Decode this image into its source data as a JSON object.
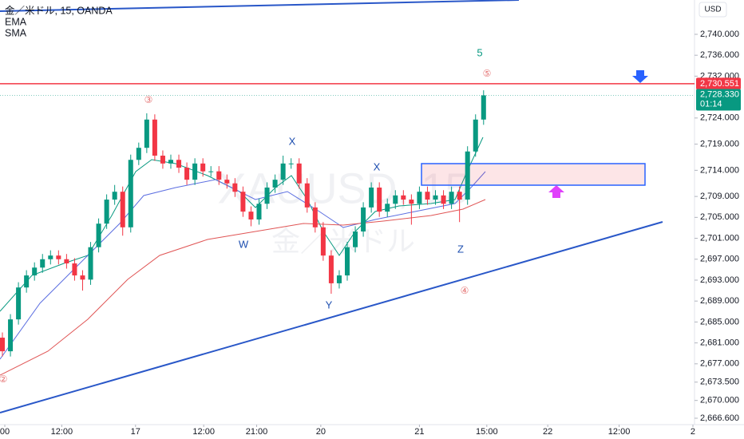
{
  "chart_data": {
    "type": "candlestick",
    "title": "金／米ドル, 15, OANDA",
    "indicators": [
      "EMA",
      "SMA"
    ],
    "currency": "USD",
    "watermark": [
      "XAUUSD, 15",
      "金／米ドル"
    ],
    "up_color": "#089981",
    "down_color": "#f23645",
    "open": [
      2682.0,
      2679.4,
      2685.5,
      2691.6,
      2693.9,
      2695.4,
      2697.0,
      2697.7,
      2697.0,
      2696.2,
      2693.9,
      2693.1,
      2699.3,
      2703.8,
      2708.4,
      2709.9,
      2703.1,
      2716.0,
      2718.3,
      2723.7,
      2716.8,
      2715.3,
      2716.0,
      2714.5,
      2712.2,
      2715.3,
      2713.8,
      2713.8,
      2712.2,
      2711.5,
      2709.9,
      2706.1,
      2704.6,
      2707.6,
      2710.7,
      2712.2,
      2715.3,
      2715.3,
      2711.5,
      2706.9,
      2703.1,
      2697.7,
      2692.4,
      2693.9,
      2699.3,
      2702.3,
      2706.9,
      2710.7,
      2706.1,
      2707.6,
      2709.2,
      2708.4,
      2707.6,
      2709.9,
      2708.4,
      2709.2,
      2707.6,
      2709.9,
      2708.4,
      2717.6,
      2723.7
    ],
    "high": [
      2683.0,
      2686.5,
      2692.6,
      2694.9,
      2696.4,
      2698.0,
      2698.7,
      2698.7,
      2698.0,
      2697.2,
      2694.9,
      2700.3,
      2704.8,
      2709.4,
      2711.2,
      2710.9,
      2717.0,
      2719.3,
      2724.9,
      2724.7,
      2717.8,
      2717.0,
      2717.0,
      2715.5,
      2716.3,
      2716.3,
      2714.8,
      2714.8,
      2713.2,
      2712.5,
      2710.9,
      2707.1,
      2708.6,
      2711.7,
      2713.2,
      2716.8,
      2716.3,
      2716.3,
      2712.5,
      2707.9,
      2704.1,
      2698.7,
      2694.9,
      2700.3,
      2703.3,
      2707.9,
      2711.7,
      2711.7,
      2708.6,
      2710.2,
      2710.2,
      2709.4,
      2710.9,
      2710.9,
      2710.2,
      2710.2,
      2710.9,
      2710.9,
      2718.6,
      2724.7,
      2729.3
    ],
    "low": [
      2678.4,
      2678.4,
      2684.5,
      2690.6,
      2692.9,
      2694.4,
      2696.0,
      2696.0,
      2695.2,
      2692.9,
      2691.0,
      2692.1,
      2698.3,
      2702.8,
      2707.4,
      2701.5,
      2702.1,
      2715.0,
      2717.3,
      2715.8,
      2714.3,
      2714.3,
      2713.5,
      2711.2,
      2711.2,
      2712.8,
      2712.8,
      2711.2,
      2710.5,
      2708.9,
      2705.1,
      2703.3,
      2703.6,
      2706.6,
      2709.7,
      2711.2,
      2714.3,
      2710.5,
      2705.9,
      2702.1,
      2696.7,
      2690.4,
      2691.4,
      2692.9,
      2698.3,
      2701.3,
      2705.9,
      2705.1,
      2705.1,
      2706.6,
      2707.4,
      2703.6,
      2706.6,
      2707.4,
      2707.4,
      2706.6,
      2706.6,
      2704.1,
      2707.4,
      2716.6,
      2722.7
    ],
    "close": [
      2679.4,
      2685.5,
      2691.6,
      2693.9,
      2695.4,
      2697.0,
      2697.7,
      2697.0,
      2696.2,
      2693.9,
      2693.1,
      2699.3,
      2703.8,
      2708.4,
      2709.9,
      2703.1,
      2716.0,
      2718.3,
      2723.7,
      2716.8,
      2715.3,
      2716.0,
      2714.5,
      2712.2,
      2715.3,
      2713.8,
      2713.8,
      2712.2,
      2711.5,
      2709.9,
      2706.1,
      2704.6,
      2707.6,
      2710.7,
      2712.2,
      2715.3,
      2715.3,
      2711.5,
      2706.9,
      2703.1,
      2697.7,
      2692.4,
      2693.9,
      2699.3,
      2702.3,
      2706.9,
      2710.7,
      2706.1,
      2707.6,
      2709.2,
      2708.4,
      2707.6,
      2709.9,
      2708.4,
      2709.2,
      2707.6,
      2709.9,
      2708.4,
      2717.6,
      2723.7,
      2728.33
    ],
    "last_price": {
      "value": 2728.33,
      "label": "2,728.330"
    },
    "countdown": "01:14",
    "alert_line": {
      "value": 2730.551,
      "label": "2,730.551"
    },
    "ylim": [
      2665.68,
      2746.56
    ],
    "yticks": [
      {
        "value": 2740,
        "label": "2,740.000"
      },
      {
        "value": 2736,
        "label": "2,736.000"
      },
      {
        "value": 2732,
        "label": "2,732.000"
      },
      {
        "value": 2724,
        "label": "2,724.000"
      },
      {
        "value": 2719,
        "label": "2,719.000"
      },
      {
        "value": 2714,
        "label": "2,714.000"
      },
      {
        "value": 2709,
        "label": "2,709.000"
      },
      {
        "value": 2705,
        "label": "2,705.000"
      },
      {
        "value": 2701,
        "label": "2,701.000"
      },
      {
        "value": 2697,
        "label": "2,697.000"
      },
      {
        "value": 2693,
        "label": "2,693.000"
      },
      {
        "value": 2689,
        "label": "2,689.000"
      },
      {
        "value": 2685,
        "label": "2,685.000"
      },
      {
        "value": 2681,
        "label": "2,681.000"
      },
      {
        "value": 2677,
        "label": "2,677.000"
      },
      {
        "value": 2673.5,
        "label": "2,673.500"
      },
      {
        "value": 2670,
        "label": "2,670.000"
      },
      {
        "value": 2666.6,
        "label": "2,666.600"
      }
    ],
    "xlim": [
      -0.3,
      86.3
    ],
    "xticks": [
      {
        "value": 0.3,
        "label": "00"
      },
      {
        "value": 7.4,
        "label": "12:00"
      },
      {
        "value": 16.6,
        "label": "17"
      },
      {
        "value": 25.1,
        "label": "12:00"
      },
      {
        "value": 31.7,
        "label": "21:00"
      },
      {
        "value": 39.7,
        "label": "20"
      },
      {
        "value": 52.0,
        "label": "21"
      },
      {
        "value": 60.4,
        "label": "15:00"
      },
      {
        "value": 68.0,
        "label": "22"
      },
      {
        "value": 76.9,
        "label": "12:00"
      },
      {
        "value": 86.1,
        "label": "2"
      }
    ],
    "annotations": [
      "③",
      "⑤",
      "④",
      "②",
      "5",
      "W",
      "X",
      "X",
      "Y",
      "Z"
    ]
  }
}
